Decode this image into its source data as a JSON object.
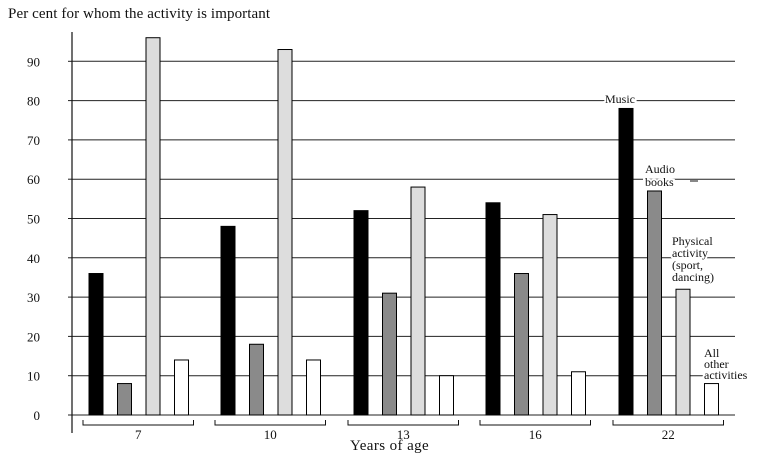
{
  "chart_data": {
    "type": "bar",
    "title": "Per cent for whom the activity is important",
    "xlabel": "Years of age",
    "ylabel": "",
    "categories": [
      "7",
      "10",
      "13",
      "16",
      "22"
    ],
    "series": [
      {
        "name": "Music",
        "values": [
          36,
          48,
          52,
          54,
          78
        ]
      },
      {
        "name": "Audio books",
        "values": [
          8,
          18,
          31,
          36,
          57
        ]
      },
      {
        "name": "Physical activity (sport, dancing)",
        "values": [
          96,
          93,
          58,
          51,
          32
        ]
      },
      {
        "name": "All other activities",
        "values": [
          14,
          14,
          10,
          11,
          8
        ]
      }
    ],
    "series_colors": [
      "#000000",
      "#8a8a8a",
      "#dddddd",
      "#ffffff"
    ],
    "series_label_lines": [
      [
        "Music"
      ],
      [
        "Audio",
        "books"
      ],
      [
        "Physical",
        "activity",
        "(sport,",
        "dancing)"
      ],
      [
        "All",
        "other",
        "activities"
      ]
    ],
    "ylim": [
      0,
      100
    ],
    "yticks": [
      0,
      10,
      20,
      30,
      40,
      50,
      60,
      70,
      80,
      90
    ],
    "grid": true,
    "legend": "direct labels beside the 22-year group"
  }
}
